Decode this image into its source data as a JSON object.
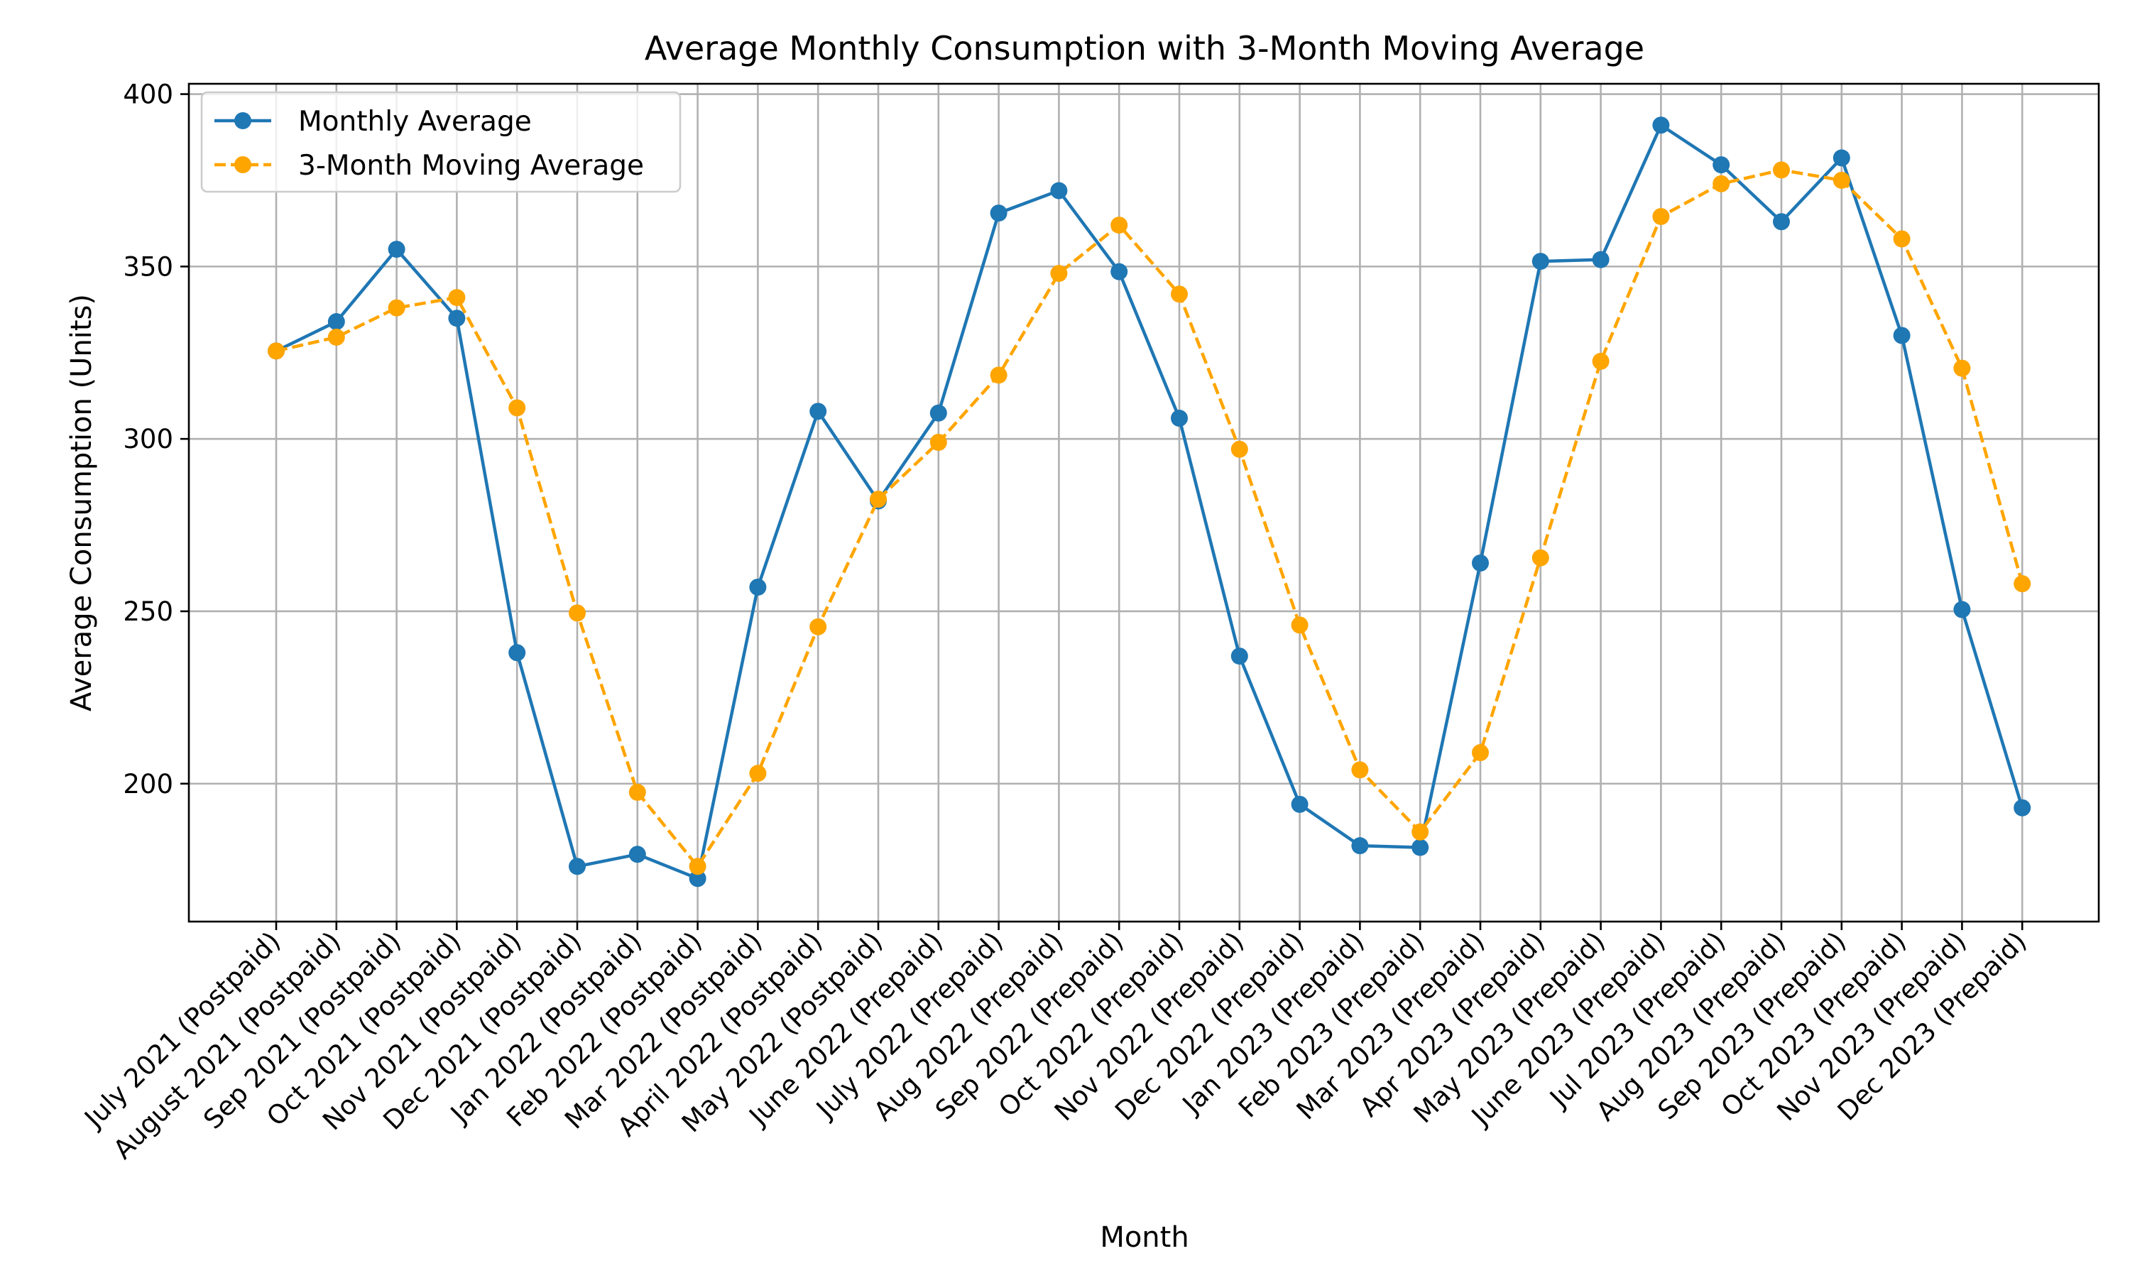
{
  "chart_data": {
    "type": "line",
    "title": "Average Monthly Consumption with 3-Month Moving Average",
    "xlabel": "Month",
    "ylabel": "Average Consumption (Units)",
    "ylim": [
      160,
      403
    ],
    "yticks": [
      200,
      250,
      300,
      350,
      400
    ],
    "grid": true,
    "legend_position": "top-left",
    "categories": [
      "July 2021 (Postpaid)",
      "August 2021 (Postpaid)",
      "Sep 2021 (Postpaid)",
      "Oct 2021 (Postpaid)",
      "Nov 2021 (Postpaid)",
      "Dec 2021 (Postpaid)",
      "Jan 2022 (Postpaid)",
      "Feb 2022 (Postpaid)",
      "Mar 2022 (Postpaid)",
      "April 2022 (Postpaid)",
      "May 2022 (Postpaid)",
      "June 2022 (Prepaid)",
      "July 2022 (Prepaid)",
      "Aug 2022 (Prepaid)",
      "Sep 2022 (Prepaid)",
      "Oct 2022 (Prepaid)",
      "Nov 2022 (Prepaid)",
      "Dec 2022 (Prepaid)",
      "Jan 2023 (Prepaid)",
      "Feb 2023 (Prepaid)",
      "Mar 2023 (Prepaid)",
      "Apr 2023 (Prepaid)",
      "May 2023 (Prepaid)",
      "June 2023 (Prepaid)",
      "Jul 2023 (Prepaid)",
      "Aug 2023 (Prepaid)",
      "Sep 2023 (Prepaid)",
      "Oct 2023 (Prepaid)",
      "Nov 2023 (Prepaid)",
      "Dec 2023 (Prepaid)"
    ],
    "series": [
      {
        "name": "Monthly Average",
        "color": "#1f77b4",
        "style": "solid",
        "values": [
          325.5,
          334,
          355,
          335,
          238,
          176,
          179.5,
          172.5,
          257,
          308,
          282,
          307.5,
          365.5,
          372,
          348.5,
          306,
          237,
          194,
          182,
          181.5,
          264,
          351.5,
          352,
          391,
          379.5,
          363,
          381.5,
          330,
          250.5,
          193
        ]
      },
      {
        "name": "3-Month Moving Average",
        "color": "#ffa500",
        "style": "dashed",
        "values": [
          325.5,
          329.5,
          338,
          341,
          309,
          249.5,
          197.5,
          176,
          203,
          245.5,
          282.5,
          299,
          318.5,
          348,
          362,
          342,
          297,
          246,
          204,
          186,
          209,
          265.5,
          322.5,
          364.5,
          374,
          378,
          375,
          358,
          320.5,
          258
        ]
      }
    ]
  }
}
